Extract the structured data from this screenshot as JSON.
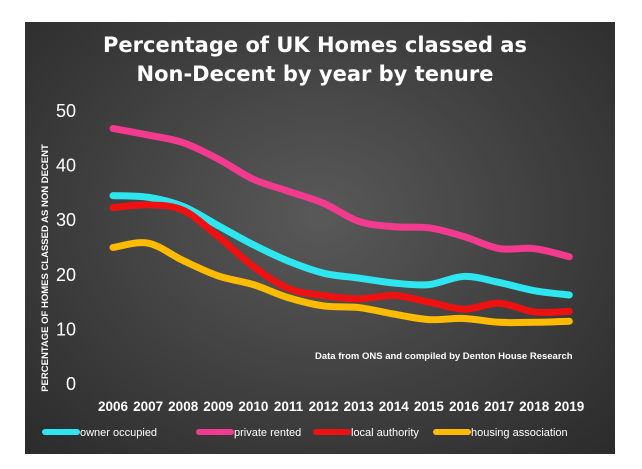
{
  "chart_data": {
    "type": "line",
    "title": [
      "Percentage of UK Homes classed as",
      "Non-Decent by year by tenure"
    ],
    "ylabel": "PERCENTAGE OF HOMES  CLASSED AS NON DECENT",
    "xlabel": "",
    "ylim": [
      0,
      50
    ],
    "yticks": [
      0,
      10,
      20,
      30,
      40,
      50
    ],
    "categories": [
      "2006",
      "2007",
      "2008",
      "2009",
      "2010",
      "2011",
      "2012",
      "2013",
      "2014",
      "2015",
      "2016",
      "2017",
      "2018",
      "2019"
    ],
    "annotation": "Data from ONS and compiled by Denton House Research",
    "legend_position": "bottom",
    "grid": false,
    "background": "#444444",
    "series": [
      {
        "name": "owner occupied",
        "color": "#2ee6f0",
        "values": [
          34.5,
          34.2,
          32.5,
          29,
          25.5,
          22.5,
          20.3,
          19.4,
          18.5,
          18.2,
          19.7,
          18.6,
          17.1,
          16.3
        ]
      },
      {
        "name": "private rented",
        "color": "#f23b8f",
        "values": [
          46.8,
          45.6,
          44.2,
          41.2,
          37.5,
          35.3,
          33.1,
          29.8,
          28.8,
          28.6,
          27.0,
          24.8,
          24.8,
          23.3
        ]
      },
      {
        "name": "local authority",
        "color": "#ee1111",
        "values": [
          32.3,
          32.8,
          31.8,
          27.0,
          21.5,
          17.5,
          16.2,
          15.6,
          16.2,
          15.0,
          13.7,
          14.8,
          13.2,
          13.3
        ]
      },
      {
        "name": "housing association",
        "color": "#ffbb00",
        "values": [
          25.0,
          25.8,
          22.6,
          19.8,
          18.2,
          15.8,
          14.3,
          14.0,
          12.8,
          11.8,
          12.0,
          11.3,
          11.3,
          11.5
        ]
      }
    ]
  }
}
